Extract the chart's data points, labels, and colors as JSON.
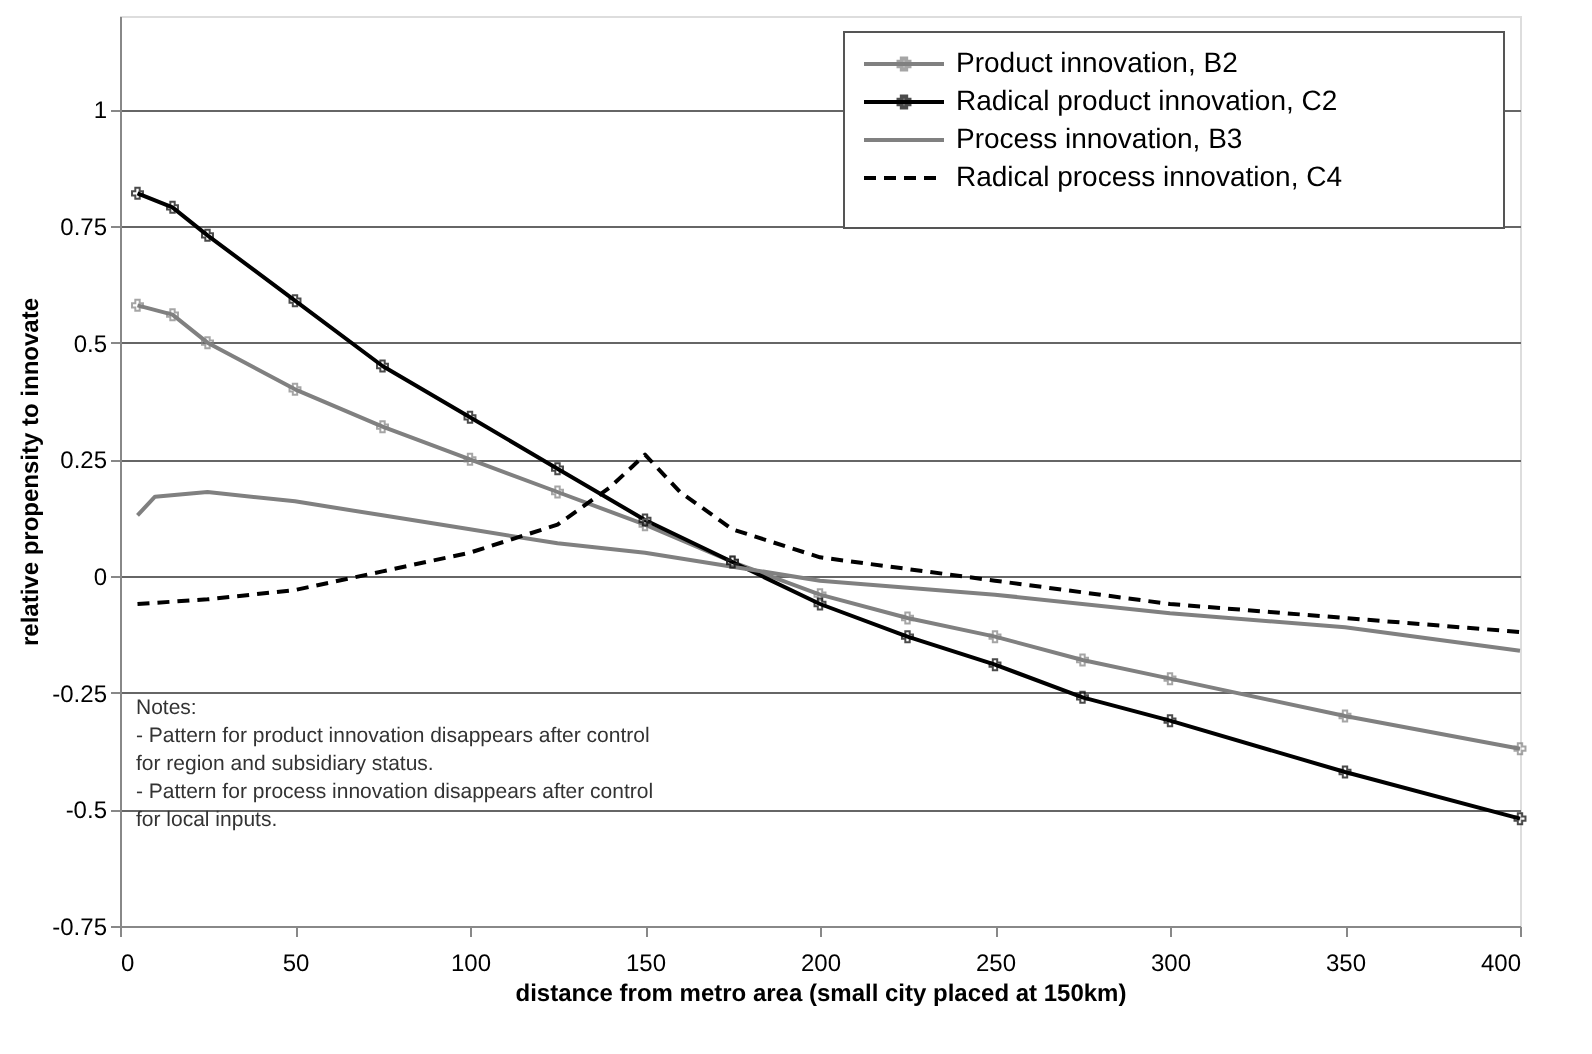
{
  "chart_data": {
    "type": "line",
    "xlabel": "distance from metro area (small city placed at 150km)",
    "ylabel": "relative propensity to innovate",
    "xlim": [
      0,
      400
    ],
    "xticks": [
      0,
      50,
      100,
      150,
      200,
      250,
      300,
      350,
      400
    ],
    "ylim": [
      -0.75,
      1.2
    ],
    "yticks": [
      -0.75,
      -0.5,
      -0.25,
      0,
      0.25,
      0.5,
      0.75,
      1
    ],
    "grid": "y",
    "legend": "top right",
    "series": [
      {
        "name": "Product innovation, B2",
        "color": "#808080",
        "marker": "cross",
        "line_style": "solid",
        "x": [
          5,
          15,
          25,
          50,
          75,
          100,
          125,
          150,
          175,
          200,
          225,
          250,
          275,
          300,
          350,
          400
        ],
        "values": [
          0.58,
          0.56,
          0.5,
          0.4,
          0.32,
          0.25,
          0.18,
          0.11,
          0.03,
          -0.04,
          -0.09,
          -0.13,
          -0.18,
          -0.22,
          -0.3,
          -0.37
        ]
      },
      {
        "name": "Radical product innovation, C2",
        "color": "#000000",
        "marker": "cross",
        "line_style": "solid",
        "x": [
          5,
          15,
          25,
          50,
          75,
          100,
          125,
          150,
          175,
          200,
          225,
          250,
          275,
          300,
          350,
          400
        ],
        "values": [
          0.82,
          0.79,
          0.73,
          0.59,
          0.45,
          0.34,
          0.23,
          0.12,
          0.03,
          -0.06,
          -0.13,
          -0.19,
          -0.26,
          -0.31,
          -0.42,
          -0.52
        ]
      },
      {
        "name": "Process innovation, B3",
        "color": "#808080",
        "marker": "none",
        "line_style": "solid",
        "x": [
          5,
          10,
          25,
          50,
          75,
          100,
          125,
          150,
          175,
          200,
          250,
          300,
          350,
          400
        ],
        "values": [
          0.13,
          0.17,
          0.18,
          0.16,
          0.13,
          0.1,
          0.07,
          0.05,
          0.02,
          -0.01,
          -0.04,
          -0.08,
          -0.11,
          -0.16
        ]
      },
      {
        "name": "Radical process innovation, C4",
        "color": "#000000",
        "marker": "none",
        "line_style": "dashed",
        "x": [
          5,
          25,
          50,
          75,
          100,
          125,
          140,
          150,
          160,
          175,
          200,
          250,
          300,
          350,
          400
        ],
        "values": [
          -0.06,
          -0.05,
          -0.03,
          0.01,
          0.05,
          0.11,
          0.19,
          0.26,
          0.18,
          0.1,
          0.04,
          -0.01,
          -0.06,
          -0.09,
          -0.12
        ]
      }
    ],
    "annotations": [
      "Notes:\n- Pattern for product innovation disappears after control\nfor region and subsidiary status.\n- Pattern for process innovation disappears after control\nfor local inputs."
    ]
  }
}
